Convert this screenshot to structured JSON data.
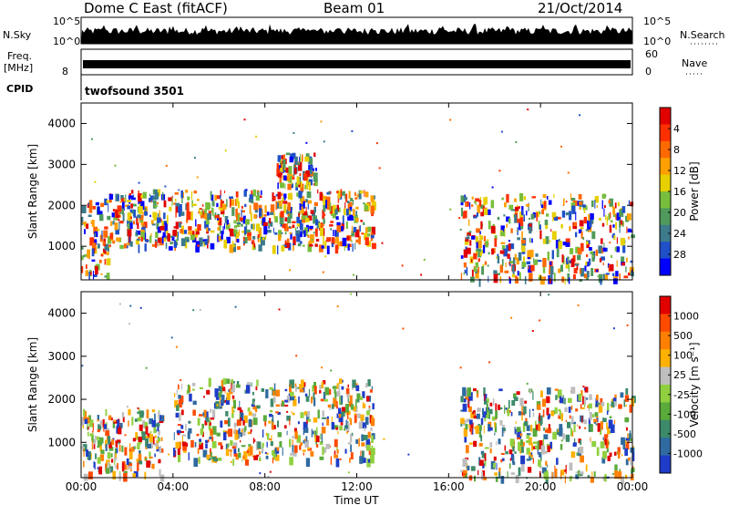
{
  "header": {
    "station": "Dome C East (fitACF)",
    "beam": "Beam 01",
    "date": "21/Oct/2014"
  },
  "params": {
    "nsky_label": "N.Sky",
    "nsky_top": "10^5",
    "nsky_bottom": "10^0",
    "nsearch_label": "N.Search",
    "freq_label": "Freq.",
    "freq_unit": "[MHz]",
    "freq_top": "",
    "freq_bottom": "8",
    "nave_label": "Nave",
    "nave_top": "60",
    "nave_bottom": "0",
    "cpid_label": "CPID",
    "cpid_value": "twofsound 3501"
  },
  "x_axis": {
    "label": "Time UT",
    "ticks": [
      "00:00",
      "04:00",
      "08:00",
      "12:00",
      "16:00",
      "20:00",
      "00:00"
    ]
  },
  "chart_data": [
    {
      "type": "heatmap",
      "title": "",
      "xlabel": "Time UT",
      "ylabel": "Slant Range [km]",
      "ylim": [
        180,
        4500
      ],
      "y_ticks": [
        "1000",
        "2000",
        "3000",
        "4000"
      ],
      "colorbar": {
        "label": "Power [dB]",
        "ticks": [
          "4",
          "8",
          "12",
          "16",
          "20",
          "24",
          "28"
        ],
        "colors": [
          "#0000ff",
          "#1f50c8",
          "#3c7a8c",
          "#4f9a5c",
          "#78be3c",
          "#e6d000",
          "#ffa000",
          "#ff6a00",
          "#ff3000",
          "#e00000"
        ]
      },
      "echo_regions": [
        {
          "t_start": 0.0,
          "t_end": 1.2,
          "r_low": 250,
          "r_high": 2200,
          "level": "mixed"
        },
        {
          "t_start": 1.2,
          "t_end": 12.7,
          "r_low": 1000,
          "r_high": 2400,
          "level": "mixed"
        },
        {
          "t_start": 8.5,
          "t_end": 10.2,
          "r_low": 2500,
          "r_high": 3300,
          "level": "mixed"
        },
        {
          "t_start": 16.5,
          "t_end": 24.0,
          "r_low": 200,
          "r_high": 2300,
          "level": "mixed"
        }
      ]
    },
    {
      "type": "heatmap",
      "title": "",
      "xlabel": "Time UT",
      "ylabel": "Slant Range [km]",
      "ylim": [
        180,
        4500
      ],
      "y_ticks": [
        "1000",
        "2000",
        "3000",
        "4000"
      ],
      "colorbar": {
        "label": "Velocity [m s⁻¹]",
        "ticks": [
          "1000",
          "500",
          "100",
          "25",
          "-25",
          "-100",
          "-500",
          "-1000"
        ],
        "colors": [
          "#1f3cc8",
          "#2f6aa0",
          "#3c8a6a",
          "#5aaa3c",
          "#90d040",
          "#bebebe",
          "#ffb000",
          "#ff8000",
          "#ff4a00",
          "#e00000"
        ]
      },
      "echo_regions": [
        {
          "t_start": 0.0,
          "t_end": 3.5,
          "r_low": 250,
          "r_high": 1800,
          "level": "mixed"
        },
        {
          "t_start": 4.0,
          "t_end": 12.7,
          "r_low": 600,
          "r_high": 2500,
          "level": "mixed"
        },
        {
          "t_start": 16.5,
          "t_end": 24.0,
          "r_low": 200,
          "r_high": 2300,
          "level": "mixed"
        }
      ]
    }
  ]
}
